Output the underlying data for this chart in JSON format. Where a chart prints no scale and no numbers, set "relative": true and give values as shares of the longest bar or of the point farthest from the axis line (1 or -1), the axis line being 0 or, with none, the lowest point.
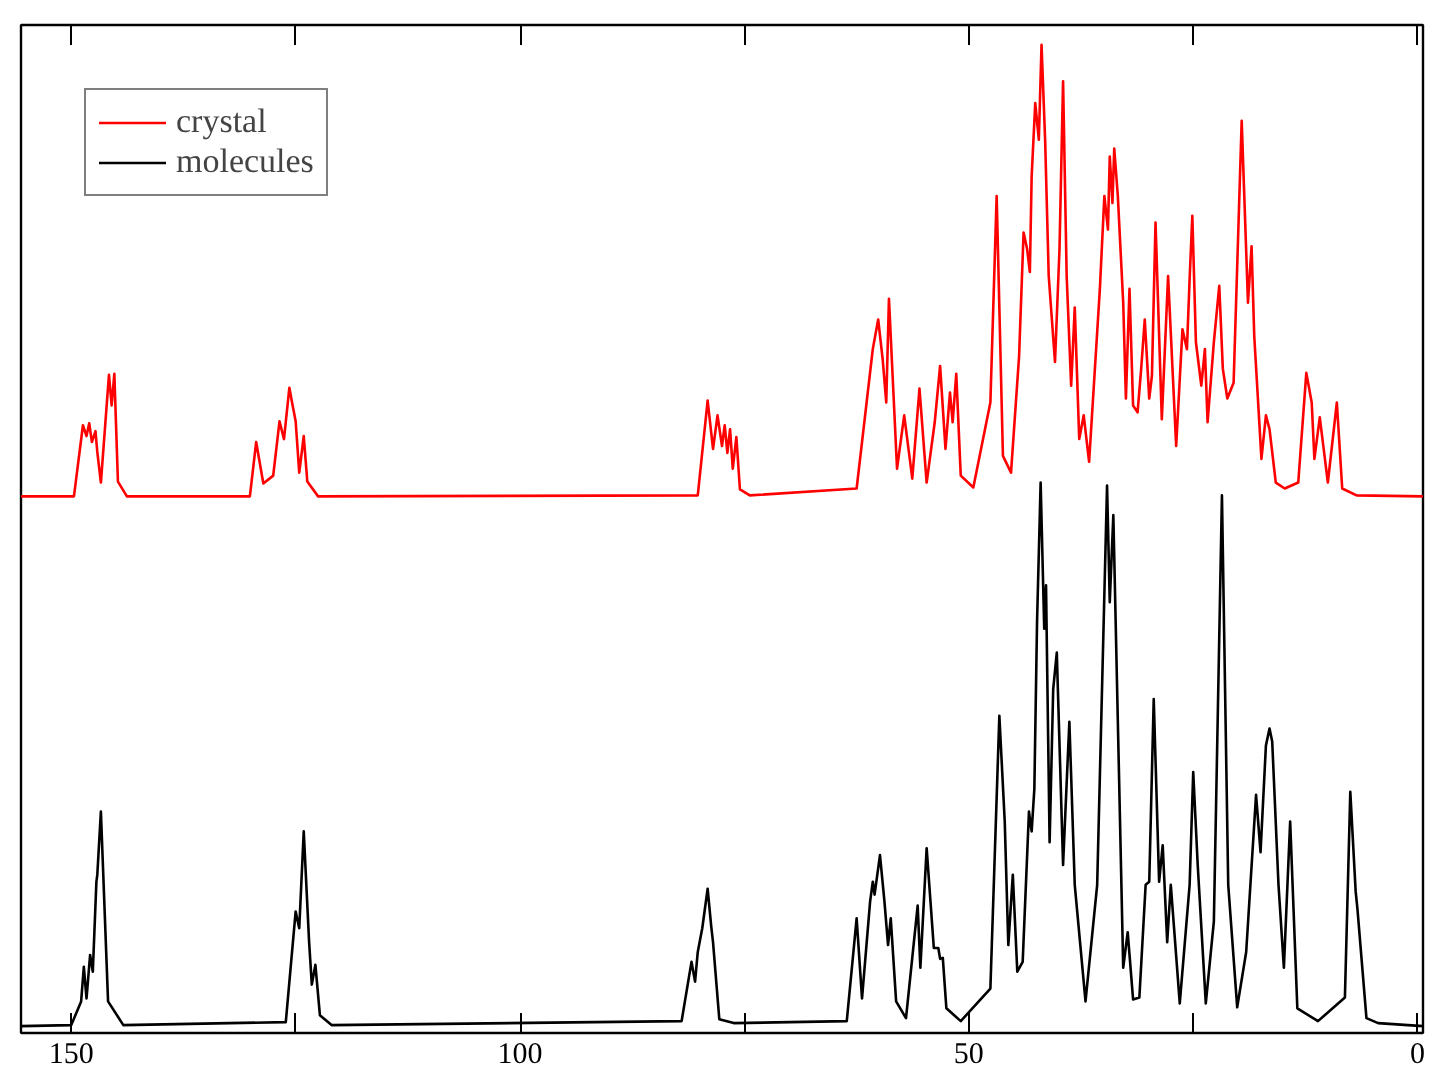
{
  "chart_data": {
    "type": "line",
    "relative": true,
    "xlim": [
      155.6,
      -0.6
    ],
    "xticks": [
      150,
      {
        "value": 125,
        "label": null
      },
      100,
      {
        "value": 75,
        "label": null
      },
      50,
      {
        "value": 25,
        "label": null
      },
      0
    ],
    "legend": "top left",
    "grid": false,
    "marker": "none",
    "line_style": "solid",
    "series": [
      {
        "name": "crystal",
        "color": "#ff0000",
        "x": [
          155.6,
          149.7,
          148.7,
          148.3,
          148.0,
          147.7,
          147.3,
          147.1,
          146.7,
          145.8,
          145.5,
          145.2,
          144.8,
          143.8,
          130.1,
          129.4,
          128.6,
          127.5,
          126.8,
          126.3,
          125.7,
          125.4,
          125.0,
          124.6,
          124.1,
          123.7,
          122.5,
          80.2,
          79.1,
          78.5,
          78.0,
          77.5,
          77.2,
          76.9,
          76.6,
          76.3,
          75.9,
          75.5,
          74.4,
          62.5,
          60.7,
          60.1,
          59.6,
          59.2,
          58.9,
          58.0,
          57.2,
          56.3,
          55.5,
          54.7,
          53.8,
          53.2,
          52.6,
          52.1,
          51.8,
          51.4,
          50.9,
          49.5,
          47.6,
          46.9,
          46.2,
          45.3,
          44.4,
          43.9,
          43.5,
          43.2,
          43.0,
          42.6,
          42.2,
          41.9,
          41.5,
          41.1,
          40.4,
          39.9,
          39.5,
          39.1,
          38.6,
          38.2,
          37.7,
          37.2,
          36.6,
          35.4,
          34.9,
          34.5,
          34.3,
          34.0,
          33.8,
          33.4,
          32.8,
          32.5,
          32.1,
          31.7,
          31.2,
          30.8,
          30.4,
          29.9,
          29.6,
          29.2,
          28.5,
          27.8,
          26.9,
          26.2,
          25.7,
          25.4,
          25.1,
          24.7,
          24.1,
          23.7,
          23.4,
          22.7,
          22.1,
          21.7,
          21.2,
          20.5,
          19.6,
          18.9,
          18.5,
          18.2,
          17.4,
          16.9,
          16.5,
          15.8,
          14.8,
          13.3,
          12.4,
          11.8,
          11.5,
          10.9,
          10.0,
          9.0,
          8.4,
          6.8,
          -0.6
        ],
        "values": [
          0.543,
          0.543,
          0.615,
          0.604,
          0.617,
          0.598,
          0.609,
          0.588,
          0.557,
          0.666,
          0.635,
          0.667,
          0.558,
          0.543,
          0.543,
          0.598,
          0.556,
          0.564,
          0.619,
          0.601,
          0.653,
          0.638,
          0.619,
          0.567,
          0.604,
          0.558,
          0.543,
          0.544,
          0.64,
          0.591,
          0.625,
          0.594,
          0.615,
          0.587,
          0.611,
          0.571,
          0.603,
          0.55,
          0.544,
          0.551,
          0.692,
          0.722,
          0.682,
          0.638,
          0.743,
          0.571,
          0.625,
          0.561,
          0.652,
          0.557,
          0.618,
          0.675,
          0.591,
          0.648,
          0.618,
          0.667,
          0.564,
          0.552,
          0.638,
          0.847,
          0.584,
          0.567,
          0.685,
          0.81,
          0.793,
          0.77,
          0.867,
          0.941,
          0.904,
          1.0,
          0.904,
          0.766,
          0.679,
          0.793,
          0.963,
          0.766,
          0.655,
          0.734,
          0.601,
          0.625,
          0.578,
          0.753,
          0.847,
          0.813,
          0.887,
          0.84,
          0.895,
          0.847,
          0.739,
          0.642,
          0.753,
          0.635,
          0.628,
          0.672,
          0.722,
          0.642,
          0.665,
          0.82,
          0.621,
          0.766,
          0.594,
          0.712,
          0.692,
          0.763,
          0.827,
          0.699,
          0.655,
          0.692,
          0.618,
          0.699,
          0.756,
          0.672,
          0.642,
          0.658,
          0.923,
          0.739,
          0.796,
          0.705,
          0.581,
          0.625,
          0.611,
          0.557,
          0.551,
          0.557,
          0.668,
          0.638,
          0.581,
          0.623,
          0.557,
          0.638,
          0.551,
          0.544,
          0.543
        ]
      },
      {
        "name": "molecules",
        "color": "#000000",
        "x": [
          155.6,
          150.0,
          148.9,
          148.6,
          148.3,
          147.9,
          147.6,
          147.2,
          147.1,
          146.7,
          145.9,
          144.2,
          126.1,
          125.0,
          124.6,
          124.1,
          123.5,
          123.2,
          122.8,
          122.3,
          121.0,
          82.0,
          80.9,
          80.5,
          80.2,
          79.7,
          79.1,
          78.7,
          78.5,
          77.8,
          76.2,
          63.6,
          62.5,
          61.9,
          61.0,
          60.7,
          60.5,
          59.9,
          59.4,
          59.0,
          58.7,
          58.1,
          57.0,
          55.7,
          55.4,
          54.7,
          53.9,
          53.4,
          53.2,
          52.9,
          52.5,
          50.9,
          47.6,
          46.6,
          46.0,
          45.6,
          45.1,
          44.6,
          44.0,
          43.3,
          43.0,
          42.7,
          42.4,
          42.0,
          41.6,
          41.4,
          41.0,
          40.6,
          40.2,
          39.5,
          38.8,
          38.2,
          37.0,
          35.7,
          34.6,
          34.3,
          33.9,
          32.8,
          32.3,
          31.7,
          31.0,
          30.3,
          29.9,
          29.4,
          28.8,
          28.4,
          27.9,
          27.5,
          26.5,
          25.4,
          25.0,
          24.5,
          23.6,
          22.7,
          21.8,
          21.1,
          20.1,
          19.1,
          18.0,
          17.5,
          16.9,
          16.5,
          16.2,
          15.5,
          14.9,
          14.2,
          13.4,
          11.1,
          8.1,
          7.5,
          6.9,
          6.7,
          5.7,
          4.4,
          -0.6
        ],
        "values": [
          0.007,
          0.008,
          0.032,
          0.067,
          0.035,
          0.079,
          0.062,
          0.153,
          0.16,
          0.224,
          0.032,
          0.008,
          0.011,
          0.123,
          0.106,
          0.204,
          0.092,
          0.049,
          0.069,
          0.018,
          0.008,
          0.012,
          0.072,
          0.052,
          0.082,
          0.106,
          0.146,
          0.108,
          0.092,
          0.014,
          0.01,
          0.012,
          0.116,
          0.035,
          0.133,
          0.153,
          0.14,
          0.18,
          0.133,
          0.089,
          0.116,
          0.032,
          0.015,
          0.129,
          0.066,
          0.187,
          0.086,
          0.086,
          0.075,
          0.076,
          0.025,
          0.012,
          0.045,
          0.321,
          0.214,
          0.089,
          0.16,
          0.062,
          0.072,
          0.224,
          0.204,
          0.247,
          0.416,
          0.557,
          0.409,
          0.453,
          0.193,
          0.348,
          0.385,
          0.17,
          0.315,
          0.15,
          0.032,
          0.15,
          0.554,
          0.436,
          0.524,
          0.066,
          0.102,
          0.034,
          0.036,
          0.15,
          0.153,
          0.338,
          0.153,
          0.19,
          0.092,
          0.15,
          0.03,
          0.15,
          0.264,
          0.17,
          0.03,
          0.113,
          0.544,
          0.15,
          0.026,
          0.082,
          0.241,
          0.183,
          0.291,
          0.308,
          0.295,
          0.15,
          0.066,
          0.214,
          0.025,
          0.012,
          0.036,
          0.244,
          0.143,
          0.125,
          0.015,
          0.01,
          0.007
        ]
      }
    ]
  }
}
